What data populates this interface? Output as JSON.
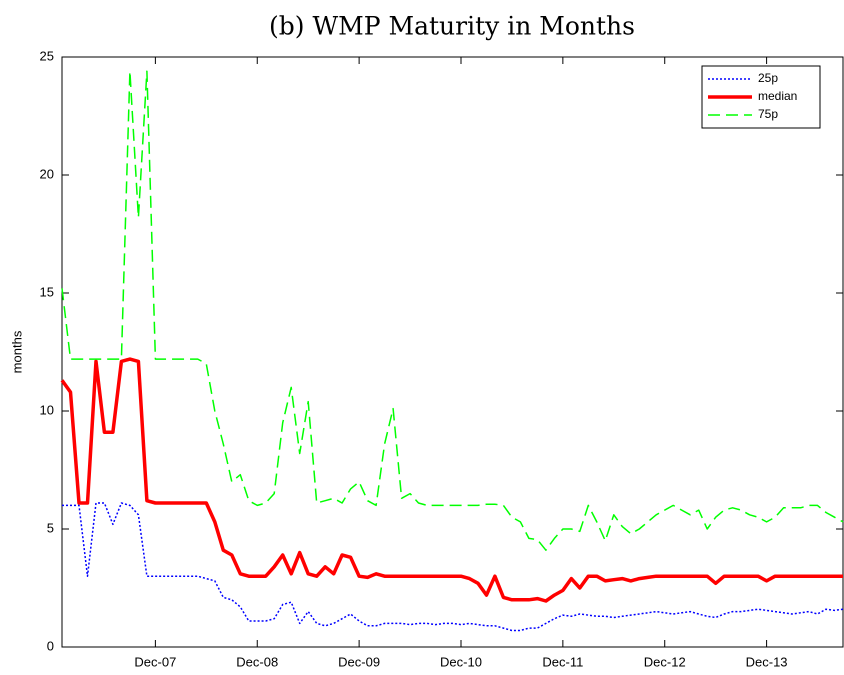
{
  "chart_data": {
    "type": "line",
    "title": "(b) WMP Maturity in Months",
    "ylabel": "months",
    "x": [
      "Jan-07",
      "Feb-07",
      "Mar-07",
      "Apr-07",
      "May-07",
      "Jun-07",
      "Jul-07",
      "Aug-07",
      "Sep-07",
      "Oct-07",
      "Nov-07",
      "Dec-07",
      "Jan-08",
      "Feb-08",
      "Mar-08",
      "Apr-08",
      "May-08",
      "Jun-08",
      "Jul-08",
      "Aug-08",
      "Sep-08",
      "Oct-08",
      "Nov-08",
      "Dec-08",
      "Jan-09",
      "Feb-09",
      "Mar-09",
      "Apr-09",
      "May-09",
      "Jun-09",
      "Jul-09",
      "Aug-09",
      "Sep-09",
      "Oct-09",
      "Nov-09",
      "Dec-09",
      "Jan-10",
      "Feb-10",
      "Mar-10",
      "Apr-10",
      "May-10",
      "Jun-10",
      "Jul-10",
      "Aug-10",
      "Sep-10",
      "Oct-10",
      "Nov-10",
      "Dec-10",
      "Jan-11",
      "Feb-11",
      "Mar-11",
      "Apr-11",
      "May-11",
      "Jun-11",
      "Jul-11",
      "Aug-11",
      "Sep-11",
      "Oct-11",
      "Nov-11",
      "Dec-11",
      "Jan-12",
      "Feb-12",
      "Mar-12",
      "Apr-12",
      "May-12",
      "Jun-12",
      "Jul-12",
      "Aug-12",
      "Sep-12",
      "Oct-12",
      "Nov-12",
      "Dec-12",
      "Jan-13",
      "Feb-13",
      "Mar-13",
      "Apr-13",
      "May-13",
      "Jun-13",
      "Jul-13",
      "Aug-13",
      "Sep-13",
      "Oct-13",
      "Nov-13",
      "Dec-13",
      "Jan-14",
      "Feb-14",
      "Mar-14",
      "Apr-14",
      "May-14",
      "Jun-14",
      "Jul-14",
      "Aug-14",
      "Sep-14"
    ],
    "xticks": [
      "Dec-07",
      "Dec-08",
      "Dec-09",
      "Dec-10",
      "Dec-11",
      "Dec-12",
      "Dec-13"
    ],
    "ylim": [
      0,
      25
    ],
    "yticks": [
      0,
      5,
      10,
      15,
      20,
      25
    ],
    "legend": "upper right",
    "series": [
      {
        "name": "25p",
        "color": "#0000ff",
        "style": "dotted",
        "values": [
          6.0,
          6.0,
          6.0,
          3.0,
          6.1,
          6.1,
          5.2,
          6.1,
          6.0,
          5.6,
          3.0,
          3.0,
          3.0,
          3.0,
          3.0,
          3.0,
          3.0,
          2.9,
          2.8,
          2.1,
          2.0,
          1.7,
          1.1,
          1.1,
          1.1,
          1.2,
          1.8,
          1.9,
          1.0,
          1.5,
          1.0,
          0.9,
          1.0,
          1.2,
          1.4,
          1.1,
          0.9,
          0.9,
          1.0,
          1.0,
          1.0,
          0.95,
          1.0,
          1.0,
          0.95,
          1.0,
          1.0,
          0.95,
          1.0,
          0.95,
          0.9,
          0.9,
          0.8,
          0.7,
          0.7,
          0.8,
          0.8,
          1.0,
          1.2,
          1.35,
          1.3,
          1.4,
          1.35,
          1.3,
          1.3,
          1.25,
          1.3,
          1.35,
          1.4,
          1.45,
          1.5,
          1.45,
          1.4,
          1.45,
          1.5,
          1.4,
          1.3,
          1.25,
          1.4,
          1.5,
          1.5,
          1.55,
          1.6,
          1.55,
          1.5,
          1.45,
          1.4,
          1.45,
          1.5,
          1.4,
          1.6,
          1.55,
          1.6
        ]
      },
      {
        "name": "median",
        "color": "#ff0000",
        "style": "solid",
        "values": [
          11.3,
          10.8,
          6.1,
          6.1,
          12.1,
          9.1,
          9.1,
          12.1,
          12.2,
          12.1,
          6.2,
          6.1,
          6.1,
          6.1,
          6.1,
          6.1,
          6.1,
          6.1,
          5.3,
          4.1,
          3.9,
          3.1,
          3.0,
          3.0,
          3.0,
          3.4,
          3.9,
          3.1,
          4.0,
          3.1,
          3.0,
          3.4,
          3.1,
          3.9,
          3.8,
          3.0,
          2.95,
          3.1,
          3.0,
          3.0,
          3.0,
          3.0,
          3.0,
          3.0,
          3.0,
          3.0,
          3.0,
          3.0,
          2.9,
          2.7,
          2.2,
          3.0,
          2.1,
          2.0,
          2.0,
          2.0,
          2.05,
          1.95,
          2.2,
          2.4,
          2.9,
          2.5,
          3.0,
          3.0,
          2.8,
          2.85,
          2.9,
          2.8,
          2.9,
          2.95,
          3.0,
          3.0,
          3.0,
          3.0,
          3.0,
          3.0,
          3.0,
          2.7,
          3.0,
          3.0,
          3.0,
          3.0,
          3.0,
          2.8,
          3.0,
          3.0,
          3.0,
          3.0,
          3.0,
          3.0,
          3.0,
          3.0,
          3.0
        ]
      },
      {
        "name": "75p",
        "color": "#00ff00",
        "style": "dashed",
        "values": [
          15.2,
          12.2,
          12.2,
          12.2,
          12.2,
          12.2,
          12.2,
          12.2,
          24.4,
          18.2,
          24.4,
          12.2,
          12.2,
          12.2,
          12.2,
          12.2,
          12.2,
          12.0,
          10.0,
          8.6,
          7.0,
          7.3,
          6.2,
          6.0,
          6.1,
          6.5,
          9.5,
          11.0,
          8.2,
          10.4,
          6.1,
          6.2,
          6.3,
          6.1,
          6.7,
          7.0,
          6.2,
          6.0,
          8.6,
          10.1,
          6.3,
          6.5,
          6.1,
          6.0,
          6.0,
          6.0,
          6.0,
          6.0,
          6.0,
          6.0,
          6.05,
          6.05,
          6.0,
          5.5,
          5.3,
          4.6,
          4.55,
          4.1,
          4.6,
          5.0,
          5.0,
          4.9,
          6.0,
          5.3,
          4.5,
          5.6,
          5.1,
          4.8,
          5.0,
          5.3,
          5.6,
          5.8,
          6.0,
          5.8,
          5.6,
          5.8,
          5.0,
          5.5,
          5.8,
          5.9,
          5.8,
          5.6,
          5.5,
          5.3,
          5.5,
          5.9,
          5.9,
          5.9,
          6.0,
          6.0,
          5.7,
          5.5,
          5.3
        ]
      }
    ]
  }
}
